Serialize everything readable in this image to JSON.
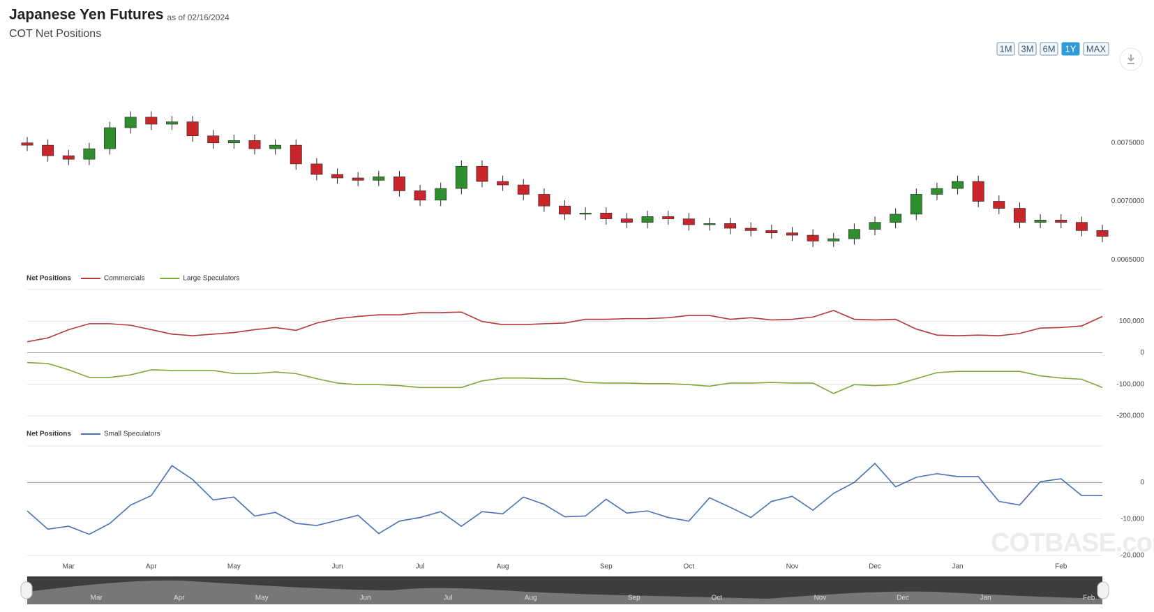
{
  "header": {
    "title": "Japanese Yen Futures",
    "as_of": "as of 02/16/2024",
    "subtitle": "COT Net Positions"
  },
  "range_buttons": [
    "1M",
    "3M",
    "6M",
    "1Y",
    "MAX"
  ],
  "active_range": "1Y",
  "watermark": "COTBASE.com",
  "chart_data": [
    {
      "type": "candlestick",
      "categories": [
        null,
        null,
        "Mar",
        null,
        null,
        null,
        "Apr",
        null,
        null,
        null,
        "May",
        null,
        null,
        null,
        null,
        "Jun",
        null,
        null,
        null,
        "Jul",
        null,
        null,
        null,
        "Aug",
        null,
        null,
        null,
        null,
        "Sep",
        null,
        null,
        null,
        "Oct",
        null,
        null,
        null,
        null,
        "Nov",
        null,
        null,
        null,
        "Dec",
        null,
        null,
        null,
        "Jan",
        null,
        null,
        null,
        null,
        "Feb",
        null,
        null
      ],
      "open": [
        0.0075,
        0.00748,
        0.00739,
        0.00736,
        0.00745,
        0.00763,
        0.00772,
        0.00766,
        0.00768,
        0.00756,
        0.0075,
        0.00752,
        0.00745,
        0.00748,
        0.00732,
        0.00723,
        0.0072,
        0.00718,
        0.00721,
        0.00709,
        0.00701,
        0.00711,
        0.0073,
        0.00717,
        0.00714,
        0.00706,
        0.00696,
        0.00689,
        0.0069,
        0.00685,
        0.00682,
        0.00687,
        0.00685,
        0.0068,
        0.00681,
        0.00677,
        0.00675,
        0.00673,
        0.00671,
        0.00666,
        0.00668,
        0.00676,
        0.00682,
        0.00689,
        0.00706,
        0.00711,
        0.00717,
        0.007,
        0.00694,
        0.00682,
        0.00684,
        0.00682,
        0.00675
      ],
      "high": [
        0.00755,
        0.00753,
        0.00744,
        0.0075,
        0.00768,
        0.00777,
        0.00777,
        0.00773,
        0.00773,
        0.00761,
        0.00757,
        0.00757,
        0.00753,
        0.00753,
        0.00737,
        0.00728,
        0.00725,
        0.00726,
        0.00726,
        0.00714,
        0.00716,
        0.00735,
        0.00735,
        0.00722,
        0.00719,
        0.00711,
        0.00701,
        0.00695,
        0.00695,
        0.0069,
        0.00692,
        0.00692,
        0.0069,
        0.00686,
        0.00686,
        0.00682,
        0.0068,
        0.00678,
        0.00676,
        0.00673,
        0.00681,
        0.00687,
        0.00694,
        0.00711,
        0.00716,
        0.00722,
        0.00722,
        0.00705,
        0.00699,
        0.00689,
        0.00689,
        0.00687,
        0.0068
      ],
      "low": [
        0.00743,
        0.00734,
        0.00731,
        0.00731,
        0.0074,
        0.00758,
        0.00761,
        0.00761,
        0.00751,
        0.00745,
        0.00745,
        0.0074,
        0.0074,
        0.00727,
        0.00718,
        0.00715,
        0.00713,
        0.00713,
        0.00704,
        0.00696,
        0.00696,
        0.00706,
        0.00712,
        0.00709,
        0.00701,
        0.00691,
        0.00684,
        0.00684,
        0.0068,
        0.00677,
        0.00677,
        0.0068,
        0.00675,
        0.00675,
        0.00672,
        0.0067,
        0.00668,
        0.00666,
        0.00661,
        0.00661,
        0.00663,
        0.00671,
        0.00677,
        0.00684,
        0.00701,
        0.00706,
        0.00695,
        0.00689,
        0.00677,
        0.00677,
        0.00677,
        0.0067,
        0.00665
      ],
      "close": [
        0.00748,
        0.00739,
        0.00736,
        0.00745,
        0.00763,
        0.00772,
        0.00766,
        0.00768,
        0.00756,
        0.0075,
        0.00752,
        0.00745,
        0.00748,
        0.00732,
        0.00723,
        0.0072,
        0.00718,
        0.00721,
        0.00709,
        0.00701,
        0.00711,
        0.0073,
        0.00717,
        0.00714,
        0.00706,
        0.00696,
        0.00689,
        0.0069,
        0.00685,
        0.00682,
        0.00687,
        0.00685,
        0.0068,
        0.00681,
        0.00677,
        0.00675,
        0.00673,
        0.00671,
        0.00666,
        0.00668,
        0.00676,
        0.00682,
        0.00689,
        0.00706,
        0.00711,
        0.00717,
        0.007,
        0.00694,
        0.00682,
        0.00684,
        0.00682,
        0.00675,
        0.0067
      ],
      "up_color": "#2f8f2f",
      "down_color": "#c9262b",
      "ylim": [
        0.0064,
        0.008
      ],
      "yticks": [
        {
          "value": 0.0065,
          "label": "0.0065000"
        },
        {
          "value": 0.007,
          "label": "0.0070000"
        },
        {
          "value": 0.0075,
          "label": "0.0075000"
        }
      ],
      "grid": false
    },
    {
      "type": "line",
      "legend_title": "Net Positions",
      "series": [
        {
          "name": "Commercials",
          "color": "#b5373a",
          "values": [
            35000,
            47000,
            73000,
            92000,
            92000,
            87000,
            73000,
            59000,
            54000,
            59000,
            64000,
            73000,
            80000,
            71000,
            94000,
            108000,
            115000,
            120000,
            120000,
            127000,
            127000,
            129000,
            99000,
            89000,
            89000,
            92000,
            94000,
            106000,
            106000,
            108000,
            108000,
            111000,
            118000,
            118000,
            106000,
            111000,
            104000,
            106000,
            113000,
            134000,
            106000,
            104000,
            106000,
            75000,
            56000,
            54000,
            56000,
            54000,
            61000,
            78000,
            80000,
            85000,
            115000
          ]
        },
        {
          "name": "Large Speculators",
          "color": "#7fa83a",
          "values": [
            -31000,
            -34000,
            -54000,
            -78000,
            -78000,
            -70000,
            -54000,
            -56000,
            -56000,
            -56000,
            -66000,
            -66000,
            -61000,
            -66000,
            -82000,
            -96000,
            -101000,
            -101000,
            -104000,
            -110000,
            -110000,
            -110000,
            -89000,
            -80000,
            -80000,
            -82000,
            -82000,
            -94000,
            -96000,
            -96000,
            -98000,
            -98000,
            -101000,
            -106000,
            -96000,
            -96000,
            -94000,
            -96000,
            -96000,
            -129000,
            -101000,
            -104000,
            -101000,
            -82000,
            -63000,
            -59000,
            -59000,
            -59000,
            -59000,
            -73000,
            -80000,
            -84000,
            -110000
          ]
        }
      ],
      "ylim": [
        -200000,
        200000
      ],
      "yticks": [
        {
          "value": 100000,
          "label": "100,000"
        },
        0,
        {
          "value": -100000,
          "label": "-100,000"
        },
        {
          "value": -200000,
          "label": "-200,000"
        }
      ],
      "grid": true
    },
    {
      "type": "line",
      "legend_title": "Net Positions",
      "series": [
        {
          "name": "Small Speculators",
          "color": "#4a6fb5",
          "values": [
            -7800,
            -12800,
            -12000,
            -14200,
            -11200,
            -6200,
            -3600,
            4600,
            800,
            -4800,
            -4000,
            -9200,
            -8200,
            -11200,
            -11800,
            -10400,
            -9000,
            -14000,
            -10600,
            -9600,
            -8000,
            -12000,
            -8000,
            -8600,
            -4000,
            -6000,
            -9400,
            -9200,
            -4600,
            -8400,
            -7800,
            -9600,
            -10600,
            -4200,
            -6800,
            -9600,
            -5200,
            -3800,
            -7600,
            -3000,
            0,
            5200,
            -1200,
            1400,
            2400,
            1600,
            1600,
            -5200,
            -6200,
            200,
            1000,
            -3600,
            -3600
          ]
        }
      ],
      "ylim": [
        -20000,
        10000
      ],
      "yticks": [
        0,
        {
          "value": -10000,
          "label": "-10,000"
        },
        {
          "value": -20000,
          "label": "-20,000"
        }
      ],
      "grid": true
    }
  ]
}
